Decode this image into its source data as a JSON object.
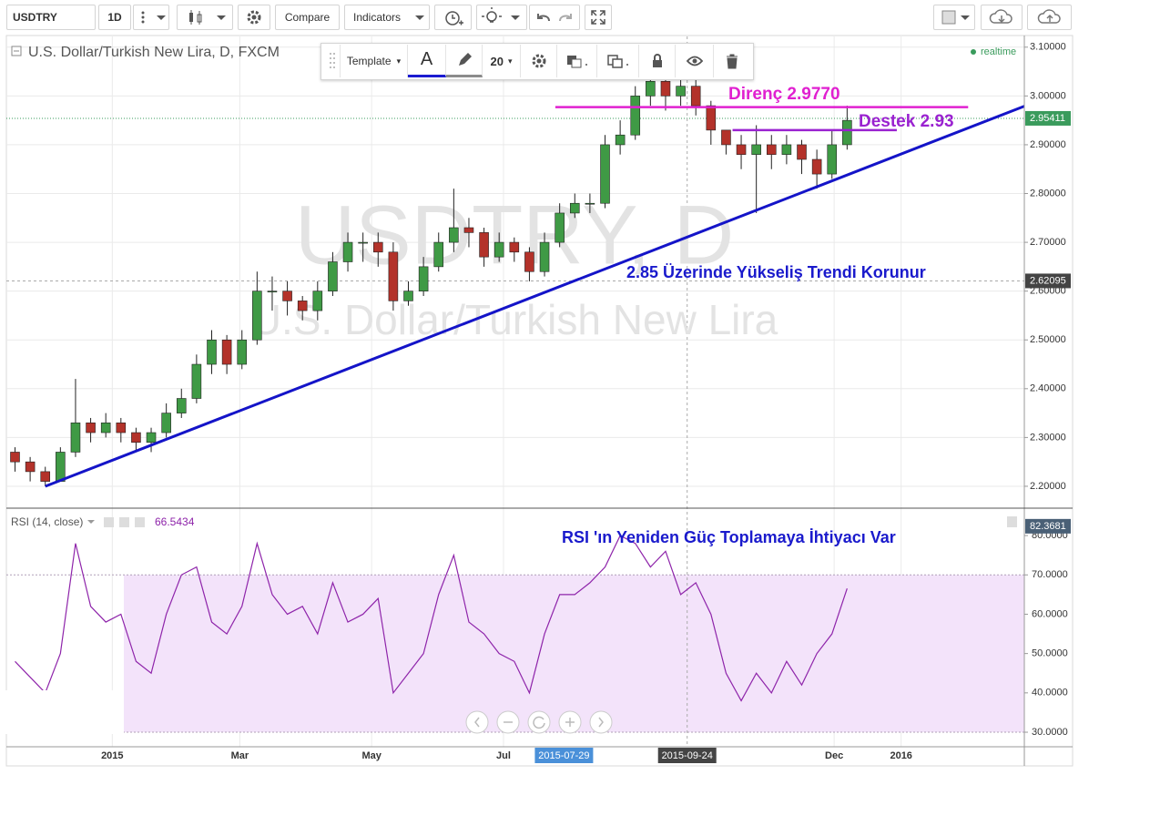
{
  "toolbar": {
    "symbol": "USDTRY",
    "interval": "1D",
    "compare": "Compare",
    "indicators": "Indicators"
  },
  "drawing_toolbar": {
    "template": "Template",
    "text_tool": "A",
    "size": "20"
  },
  "chart_data": [
    {
      "type": "candlestick",
      "title": "U.S. Dollar/Turkish New Lira, D, FXCM",
      "status": "realtime",
      "watermark": "USDTRY, D",
      "watermark_subtitle": "U.S. Dollar/Turkish New Lira",
      "x": [
        "2014-11-17",
        "2014-11-24",
        "2014-12-01",
        "2014-12-08",
        "2014-12-15",
        "2014-12-22",
        "2014-12-29",
        "2015-01-05",
        "2015-01-12",
        "2015-01-19",
        "2015-01-26",
        "2015-02-02",
        "2015-02-09",
        "2015-02-16",
        "2015-02-23",
        "2015-03-02",
        "2015-03-09",
        "2015-03-16",
        "2015-03-23",
        "2015-03-30",
        "2015-04-06",
        "2015-04-13",
        "2015-04-20",
        "2015-04-27",
        "2015-05-04",
        "2015-05-11",
        "2015-05-18",
        "2015-05-25",
        "2015-06-01",
        "2015-06-08",
        "2015-06-15",
        "2015-06-22",
        "2015-06-29",
        "2015-07-06",
        "2015-07-13",
        "2015-07-20",
        "2015-07-27",
        "2015-08-03",
        "2015-08-10",
        "2015-08-17",
        "2015-08-24",
        "2015-08-31",
        "2015-09-07",
        "2015-09-14",
        "2015-09-21",
        "2015-09-28",
        "2015-10-05",
        "2015-10-12",
        "2015-10-19",
        "2015-10-26",
        "2015-11-02",
        "2015-11-09",
        "2015-11-16",
        "2015-11-23",
        "2015-11-30",
        "2015-12-07"
      ],
      "open": [
        2.27,
        2.25,
        2.23,
        2.21,
        2.27,
        2.33,
        2.31,
        2.33,
        2.31,
        2.29,
        2.31,
        2.35,
        2.38,
        2.45,
        2.5,
        2.45,
        2.5,
        2.6,
        2.6,
        2.58,
        2.56,
        2.6,
        2.66,
        2.7,
        2.7,
        2.68,
        2.58,
        2.6,
        2.65,
        2.7,
        2.73,
        2.72,
        2.67,
        2.7,
        2.68,
        2.64,
        2.7,
        2.76,
        2.78,
        2.78,
        2.9,
        2.92,
        3.0,
        3.03,
        3.0,
        3.02,
        2.98,
        2.93,
        2.9,
        2.88,
        2.9,
        2.88,
        2.9,
        2.87,
        2.84,
        2.9
      ],
      "high": [
        2.28,
        2.26,
        2.24,
        2.28,
        2.42,
        2.34,
        2.35,
        2.34,
        2.32,
        2.32,
        2.37,
        2.4,
        2.47,
        2.52,
        2.51,
        2.52,
        2.64,
        2.63,
        2.62,
        2.59,
        2.62,
        2.68,
        2.72,
        2.72,
        2.72,
        2.7,
        2.62,
        2.67,
        2.72,
        2.81,
        2.75,
        2.73,
        2.72,
        2.71,
        2.69,
        2.72,
        2.78,
        2.8,
        2.8,
        2.92,
        2.95,
        3.02,
        3.05,
        3.05,
        3.04,
        3.04,
        2.99,
        2.93,
        2.92,
        2.94,
        2.92,
        2.92,
        2.91,
        2.89,
        2.93,
        2.98
      ],
      "low": [
        2.23,
        2.21,
        2.2,
        2.21,
        2.26,
        2.29,
        2.3,
        2.29,
        2.27,
        2.27,
        2.3,
        2.34,
        2.37,
        2.43,
        2.43,
        2.44,
        2.49,
        2.56,
        2.55,
        2.54,
        2.54,
        2.59,
        2.64,
        2.66,
        2.65,
        2.56,
        2.57,
        2.59,
        2.64,
        2.68,
        2.69,
        2.65,
        2.66,
        2.66,
        2.62,
        2.63,
        2.69,
        2.75,
        2.76,
        2.77,
        2.88,
        2.91,
        2.98,
        2.97,
        2.98,
        2.96,
        2.9,
        2.88,
        2.85,
        2.76,
        2.85,
        2.86,
        2.84,
        2.81,
        2.83,
        2.89
      ],
      "close": [
        2.25,
        2.23,
        2.21,
        2.27,
        2.33,
        2.31,
        2.33,
        2.31,
        2.29,
        2.31,
        2.35,
        2.38,
        2.45,
        2.5,
        2.45,
        2.5,
        2.6,
        2.6,
        2.58,
        2.56,
        2.6,
        2.66,
        2.7,
        2.7,
        2.68,
        2.58,
        2.6,
        2.65,
        2.7,
        2.73,
        2.72,
        2.67,
        2.7,
        2.68,
        2.64,
        2.7,
        2.76,
        2.78,
        2.78,
        2.9,
        2.92,
        3.0,
        3.03,
        3.0,
        3.02,
        2.98,
        2.93,
        2.9,
        2.88,
        2.9,
        2.88,
        2.9,
        2.87,
        2.84,
        2.9,
        2.95
      ],
      "up_color": "#3f9a45",
      "down_color": "#b3322a",
      "xlim": [
        "2014-11-13",
        "2016-02-27"
      ],
      "xticks": [
        {
          "value": "2015-01-01",
          "label": "2015"
        },
        {
          "value": "2015-03-01",
          "label": "Mar"
        },
        {
          "value": "2015-05-01",
          "label": "May"
        },
        {
          "value": "2015-07-01",
          "label": "Jul"
        },
        {
          "value": "2015-12-01",
          "label": "Dec"
        },
        {
          "value": "2016-01-01",
          "label": "2016"
        }
      ],
      "ylim": [
        2.157,
        3.122
      ],
      "yticks": [
        {
          "value": 2.2,
          "label": "2.20000"
        },
        {
          "value": 2.3,
          "label": "2.30000"
        },
        {
          "value": 2.4,
          "label": "2.40000"
        },
        {
          "value": 2.5,
          "label": "2.50000"
        },
        {
          "value": 2.6,
          "label": "2.60000"
        },
        {
          "value": 2.7,
          "label": "2.70000"
        },
        {
          "value": 2.8,
          "label": "2.80000"
        },
        {
          "value": 2.9,
          "label": "2.90000"
        },
        {
          "value": 3.0,
          "label": "3.00000"
        },
        {
          "value": 3.1,
          "label": "3.10000"
        }
      ],
      "last_price": 2.95411,
      "last_price_color": "#3a9b5c",
      "crosshair": {
        "x": "2015-09-24",
        "y": 2.62095
      },
      "marker_x": "2015-07-29",
      "levels": [
        {
          "value": 2.977,
          "from": "2015-07-25",
          "to": "2016-02-01",
          "color": "#e020d0"
        },
        {
          "value": 2.93,
          "from": "2015-10-15",
          "to": "2015-12-30",
          "color": "#9a22d0"
        }
      ],
      "trendline": {
        "x": [
          "2014-12-01",
          "2016-02-27"
        ],
        "y": [
          2.2,
          2.979
        ],
        "color": "#1414c8"
      },
      "annotations": [
        {
          "text": "Direnç 2.9770",
          "color": "#e020d0"
        },
        {
          "text": "Destek 2.93",
          "color": "#9a22d0"
        },
        {
          "text": "2.85 Üzerinde Yükseliş Trendi Korunur",
          "color": "#1a1acc"
        }
      ]
    },
    {
      "type": "line",
      "title": "RSI (14, close)",
      "last_value": 66.5434,
      "scale_label": 82.3681,
      "color": "#8e24aa",
      "band": [
        30,
        70
      ],
      "band_color": "#f3e3fa",
      "values": [
        48,
        44,
        40,
        50,
        78,
        62,
        58,
        60,
        48,
        45,
        60,
        70,
        72,
        58,
        55,
        62,
        78,
        65,
        60,
        62,
        55,
        68,
        58,
        60,
        64,
        40,
        45,
        50,
        65,
        75,
        58,
        55,
        50,
        48,
        40,
        55,
        65,
        65,
        68,
        72,
        80,
        78,
        72,
        76,
        65,
        68,
        60,
        45,
        38,
        45,
        40,
        48,
        42,
        50,
        55,
        66.5434
      ],
      "ylim": [
        26.3,
        86.5
      ],
      "yticks": [
        {
          "value": 30,
          "label": "30.0000"
        },
        {
          "value": 40,
          "label": "40.0000"
        },
        {
          "value": 50,
          "label": "50.0000"
        },
        {
          "value": 60,
          "label": "60.0000"
        },
        {
          "value": 70,
          "label": "70.0000"
        },
        {
          "value": 80,
          "label": "80.0000"
        }
      ],
      "annotation": {
        "text": "RSI 'ın Yeniden Güç Toplamaya İhtiyacı Var",
        "color": "#1a1acc"
      }
    }
  ]
}
